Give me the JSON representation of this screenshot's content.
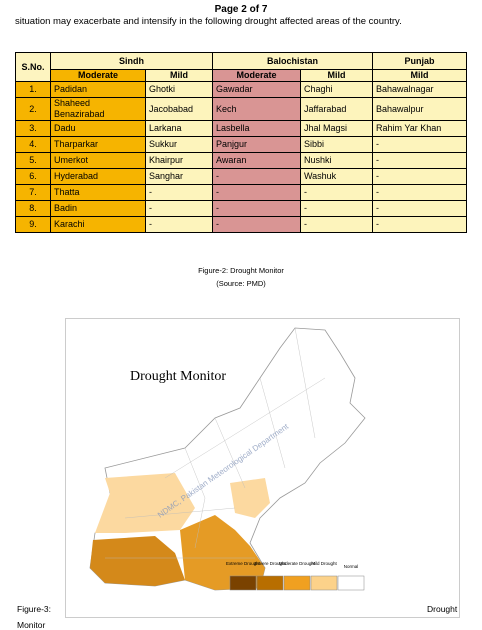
{
  "header": {
    "page": "Page 2 of 7",
    "intro": "situation may exacerbate and intensify in the following drought affected areas of the country."
  },
  "table": {
    "groups": [
      "S.No.",
      "Sindh",
      "Balochistan",
      "Punjab"
    ],
    "subheaders": [
      "Moderate",
      "Mild",
      "Moderate",
      "Mild",
      "Mild"
    ],
    "rows": [
      [
        "1.",
        "Padidan",
        "Ghotki",
        "Gawadar",
        "Chaghi",
        "Bahawalnagar"
      ],
      [
        "2.",
        "Shaheed Benazirabad",
        "Jacobabad",
        "Kech",
        "Jaffarabad",
        "Bahawalpur"
      ],
      [
        "3.",
        "Dadu",
        "Larkana",
        "Lasbella",
        "Jhal Magsi",
        "Rahim Yar Khan"
      ],
      [
        "4.",
        "Tharparkar",
        "Sukkur",
        "Panjgur",
        "Sibbi",
        "-"
      ],
      [
        "5.",
        "Umerkot",
        "Khairpur",
        "Awaran",
        "Nushki",
        "-"
      ],
      [
        "6.",
        "Hyderabad",
        "Sanghar",
        "-",
        "Washuk",
        "-"
      ],
      [
        "7.",
        "Thatta",
        "-",
        "-",
        "-",
        "-"
      ],
      [
        "8.",
        "Badin",
        "-",
        "-",
        "-",
        "-"
      ],
      [
        "9.",
        "Karachi",
        "-",
        "-",
        "-",
        "-"
      ]
    ]
  },
  "captions": {
    "figure2": "Figure-2: Drought Monitor",
    "source": "(Source: PMD)"
  },
  "figure": {
    "title": "Drought Monitor",
    "watermark": "NDMC, Pakistan Meteorological Department",
    "legend": [
      "Extreme Drought",
      "Severe Drought",
      "Moderate Drought",
      "Mild Drought",
      "Normal"
    ]
  },
  "footer": {
    "label": "Figure-3:",
    "right": "Drought",
    "below": "Monitor"
  }
}
